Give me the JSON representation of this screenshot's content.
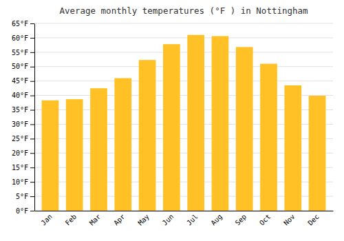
{
  "chart_data": {
    "type": "bar",
    "title": "Average monthly temperatures (°F ) in Nottingham",
    "categories": [
      "Jan",
      "Feb",
      "Mar",
      "Apr",
      "May",
      "Jun",
      "Jul",
      "Aug",
      "Sep",
      "Oct",
      "Nov",
      "Dec"
    ],
    "values": [
      38.3,
      38.7,
      42.5,
      46.0,
      52.3,
      57.8,
      61.0,
      60.6,
      56.8,
      51.0,
      43.5,
      39.9
    ],
    "color": "#FFC125",
    "ylim": [
      0,
      65
    ],
    "yticks": [
      {
        "value": 0,
        "label": "0°F"
      },
      {
        "value": 5,
        "label": "5°F"
      },
      {
        "value": 10,
        "label": "10°F"
      },
      {
        "value": 15,
        "label": "15°F"
      },
      {
        "value": 20,
        "label": "20°F"
      },
      {
        "value": 25,
        "label": "25°F"
      },
      {
        "value": 30,
        "label": "30°F"
      },
      {
        "value": 35,
        "label": "35°F"
      },
      {
        "value": 40,
        "label": "40°F"
      },
      {
        "value": 45,
        "label": "45°F"
      },
      {
        "value": 50,
        "label": "50°F"
      },
      {
        "value": 55,
        "label": "55°F"
      },
      {
        "value": 60,
        "label": "60°F"
      },
      {
        "value": 65,
        "label": "65°F"
      }
    ],
    "grid": true
  }
}
